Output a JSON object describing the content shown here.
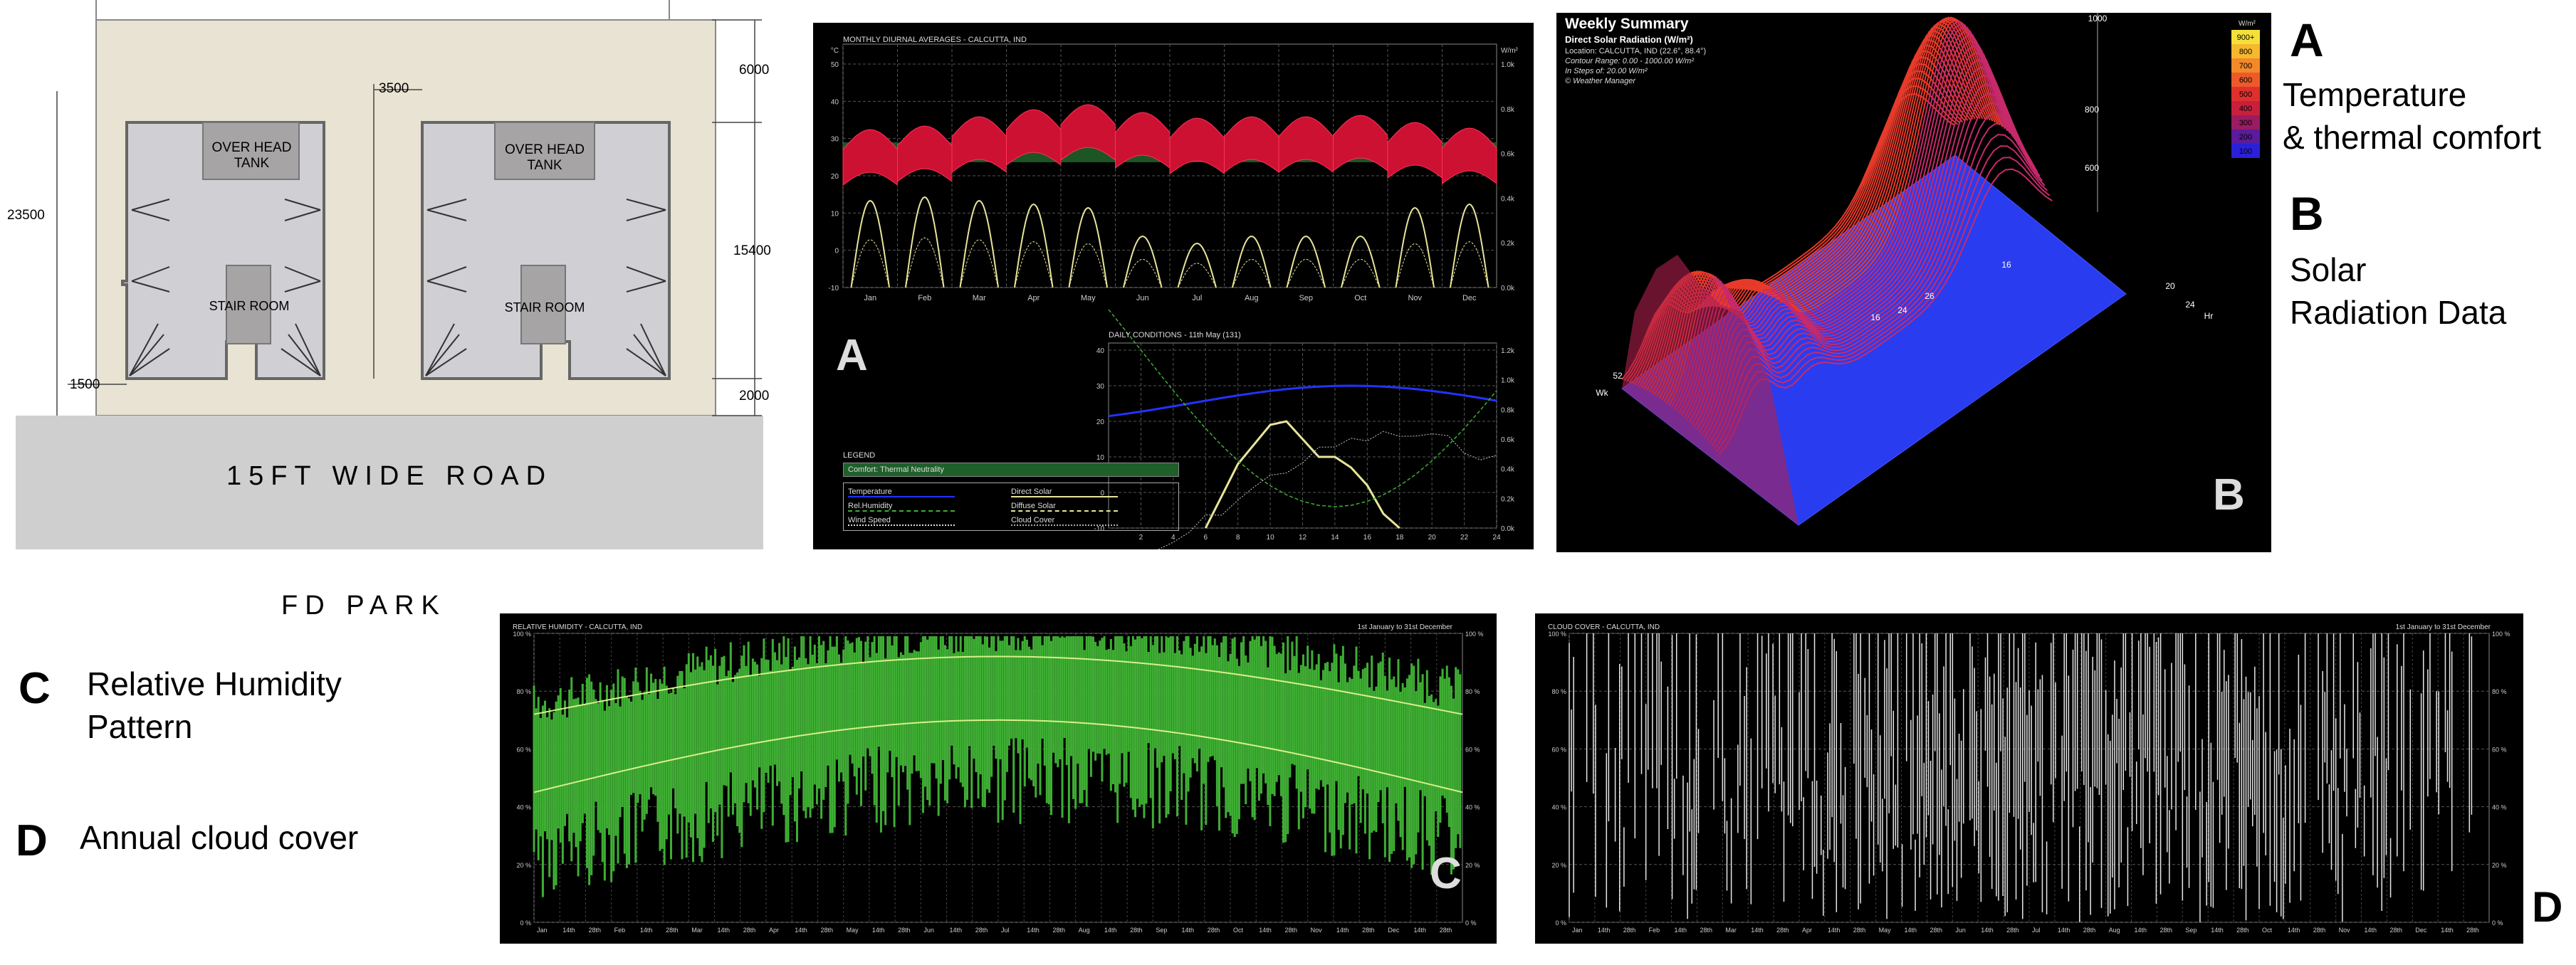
{
  "site_plan": {
    "road_label": "15FT WIDE ROAD",
    "park_label": "FD PARK",
    "unit_a": {
      "tank": "OVER HEAD TANK",
      "stair": "STAIR ROOM"
    },
    "unit_b": {
      "tank": "OVER HEAD TANK",
      "stair": "STAIR ROOM"
    },
    "dimensions": {
      "gap": "3500",
      "top": "6000",
      "mid": "15400",
      "bottom": "2000",
      "left": "23500",
      "left_small": "1500"
    }
  },
  "panel_a": {
    "tag": "A",
    "monthly_title": "MONTHLY DIURNAL AVERAGES - CALCUTTA, IND",
    "left_unit": "°C",
    "right_unit": "W/m²",
    "months": [
      "Jan",
      "Feb",
      "Mar",
      "Apr",
      "May",
      "Jun",
      "Jul",
      "Aug",
      "Sep",
      "Oct",
      "Nov",
      "Dec"
    ],
    "y_ticks": [
      "50",
      "40",
      "30",
      "20",
      "10",
      "0",
      "-10"
    ],
    "y_right_ticks": [
      "1.0k",
      "0.8k",
      "0.6k",
      "0.4k",
      "0.2k",
      "0.0k"
    ],
    "daily_title": "DAILY CONDITIONS - 11th May (131)",
    "daily_x_ticks": [
      "2",
      "4",
      "6",
      "8",
      "10",
      "12",
      "14",
      "16",
      "18",
      "20",
      "22",
      "24"
    ],
    "daily_y_ticks": [
      "40",
      "30",
      "20",
      "10",
      "0",
      "-10"
    ],
    "daily_y_right_ticks": [
      "1.2k",
      "1.0k",
      "0.8k",
      "0.6k",
      "0.4k",
      "0.2k",
      "0.0k"
    ],
    "legend": {
      "title": "LEGEND",
      "comfort": "Comfort: Thermal Neutrality",
      "items": [
        "Temperature",
        "Direct Solar",
        "Rel.Humidity",
        "Diffuse Solar",
        "Wind Speed",
        "Cloud Cover"
      ]
    },
    "colors": {
      "temp_band": "#cc1133",
      "comfort": "#1f5f2a",
      "solar": "#e8e59a",
      "temp_line": "#2233ff"
    }
  },
  "panel_b": {
    "tag": "B",
    "title": "Weekly Summary",
    "subtitle": "Direct Solar Radiation (W/m²)",
    "location": "Location: CALCUTTA, IND (22.6°, 88.4°)",
    "range": "Contour Range: 0.00 - 1000.00 W/m²",
    "steps": "In Steps of: 20.00 W/m²",
    "credit": "© Weather Manager",
    "scale_unit": "W/m²",
    "scale_ticks": [
      "900+",
      "800",
      "700",
      "600",
      "500",
      "400",
      "300",
      "200",
      "100"
    ],
    "scale_colors": [
      "#f5e03a",
      "#f5b82e",
      "#f2892a",
      "#ec5a2a",
      "#e0302e",
      "#c8203c",
      "#9a1c62",
      "#5a1c9a",
      "#2a20d8"
    ],
    "axis_labels": [
      "1000",
      "800",
      "600",
      "16",
      "26",
      "24",
      "16",
      "52",
      "Wk",
      "20",
      "24",
      "Hr"
    ]
  },
  "panel_c": {
    "tag": "C",
    "title": "RELATIVE HUMIDITY - CALCUTTA, IND",
    "range": "1st January to 31st December",
    "y_ticks": [
      "100 %",
      "80 %",
      "60 %",
      "40 %",
      "20 %",
      "0 %"
    ],
    "x_ticks": [
      "Jan",
      "14th",
      "28th",
      "Feb",
      "14th",
      "28th",
      "Mar",
      "14th",
      "28th",
      "Apr",
      "14th",
      "28th",
      "May",
      "14th",
      "28th",
      "Jun",
      "14th",
      "28th",
      "Jul",
      "14th",
      "28th",
      "Aug",
      "14th",
      "28th",
      "Sep",
      "14th",
      "28th",
      "Oct",
      "14th",
      "28th",
      "Nov",
      "14th",
      "28th",
      "Dec",
      "14th",
      "28th"
    ],
    "color": "#3fae34"
  },
  "panel_d": {
    "tag": "D",
    "title": "CLOUD COVER - CALCUTTA, IND",
    "range": "1st January to 31st December",
    "y_ticks": [
      "100 %",
      "80 %",
      "60 %",
      "40 %",
      "20 %",
      "0 %"
    ],
    "x_ticks": [
      "Jan",
      "14th",
      "28th",
      "Feb",
      "14th",
      "28th",
      "Mar",
      "14th",
      "28th",
      "Apr",
      "14th",
      "28th",
      "May",
      "14th",
      "28th",
      "Jun",
      "14th",
      "28th",
      "Jul",
      "14th",
      "28th",
      "Aug",
      "14th",
      "28th",
      "Sep",
      "14th",
      "28th",
      "Oct",
      "14th",
      "28th",
      "Nov",
      "14th",
      "28th",
      "Dec",
      "14th",
      "28th"
    ]
  },
  "captions": {
    "a_letter": "A",
    "a_text_1": "Temperature",
    "a_text_2": "& thermal comfort",
    "b_letter": "B",
    "b_text_1": "Solar",
    "b_text_2": "Radiation Data",
    "c_letter": "C",
    "c_text_1": "Relative Humidity",
    "c_text_2": "Pattern",
    "d_letter": "D",
    "d_text": "Annual cloud cover"
  }
}
